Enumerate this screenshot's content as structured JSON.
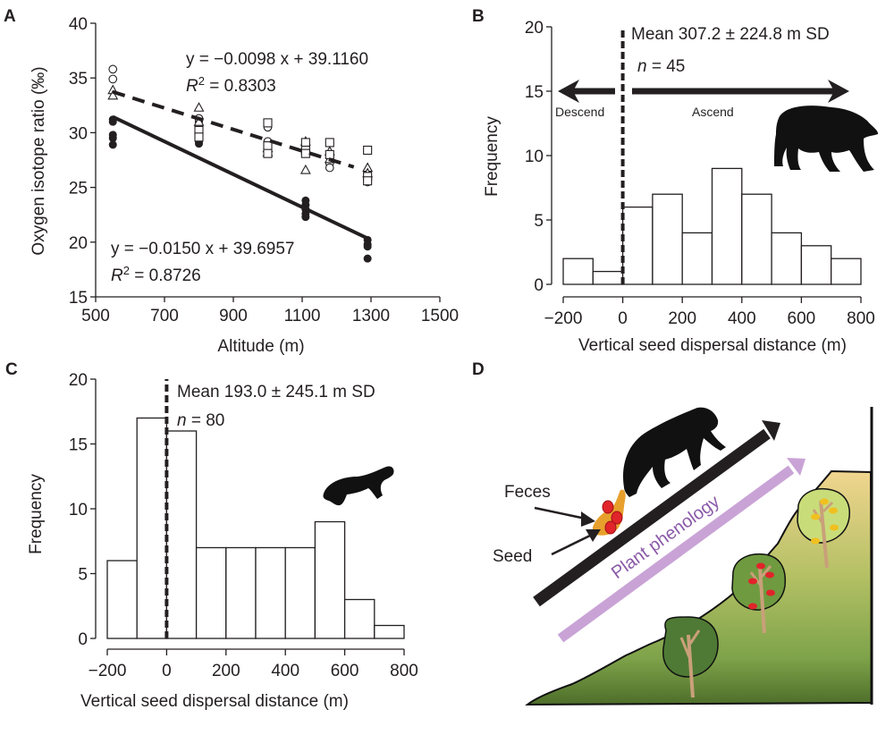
{
  "chart_data": [
    {
      "panel": "A",
      "type": "scatter",
      "xlabel": "Altitude (m)",
      "ylabel": "Oxygen isotope ratio (‰)",
      "xlim": [
        500,
        1500
      ],
      "ylim": [
        15,
        40
      ],
      "xticks": [
        500,
        700,
        900,
        1100,
        1300,
        1500
      ],
      "yticks": [
        15,
        20,
        25,
        30,
        35,
        40
      ],
      "grid": false,
      "series": [
        {
          "name": "filled circles",
          "marker": "filled-circle",
          "points": [
            [
              550,
              31.2
            ],
            [
              550,
              31.0
            ],
            [
              550,
              29.8
            ],
            [
              550,
              29.5
            ],
            [
              550,
              28.9
            ],
            [
              800,
              31.0
            ],
            [
              800,
              30.5
            ],
            [
              800,
              30.0
            ],
            [
              800,
              29.5
            ],
            [
              800,
              29.2
            ],
            [
              800,
              29.0
            ],
            [
              1110,
              23.8
            ],
            [
              1110,
              23.4
            ],
            [
              1110,
              23.0
            ],
            [
              1110,
              22.6
            ],
            [
              1110,
              22.3
            ],
            [
              1290,
              20.2
            ],
            [
              1290,
              19.8
            ],
            [
              1290,
              19.6
            ],
            [
              1290,
              18.5
            ]
          ]
        },
        {
          "name": "open circles",
          "marker": "open-circle",
          "points": [
            [
              550,
              35.8
            ],
            [
              550,
              34.9
            ],
            [
              800,
              31.3
            ],
            [
              800,
              30.5
            ],
            [
              1000,
              30.5
            ],
            [
              1000,
              29.2
            ],
            [
              1110,
              28.6
            ],
            [
              1180,
              27.8
            ],
            [
              1180,
              27.2
            ],
            [
              1180,
              26.8
            ],
            [
              1290,
              26.3
            ],
            [
              1290,
              25.5
            ]
          ]
        },
        {
          "name": "open triangles",
          "marker": "open-triangle",
          "points": [
            [
              550,
              33.9
            ],
            [
              550,
              33.4
            ],
            [
              800,
              32.3
            ],
            [
              800,
              31.0
            ],
            [
              1000,
              28.6
            ],
            [
              1000,
              28.2
            ],
            [
              1110,
              29.2
            ],
            [
              1110,
              26.6
            ],
            [
              1180,
              28.3
            ],
            [
              1180,
              27.6
            ],
            [
              1290,
              26.8
            ],
            [
              1290,
              26.3
            ]
          ]
        },
        {
          "name": "open squares",
          "marker": "open-square",
          "points": [
            [
              800,
              30.2
            ],
            [
              800,
              29.6
            ],
            [
              1000,
              30.9
            ],
            [
              1000,
              28.8
            ],
            [
              1000,
              28.1
            ],
            [
              1110,
              29.1
            ],
            [
              1110,
              28.4
            ],
            [
              1110,
              28.1
            ],
            [
              1180,
              29.1
            ],
            [
              1180,
              28.0
            ],
            [
              1290,
              28.4
            ],
            [
              1290,
              26.0
            ],
            [
              1290,
              25.6
            ]
          ]
        }
      ],
      "fits": [
        {
          "style": "dashed",
          "slope": -0.0098,
          "intercept": 39.116,
          "x_range": [
            550,
            1250
          ],
          "equation": "y = −0.0098 x + 39.1160",
          "r2_label": "R",
          "r2_sup": "2",
          "r2_value": " = 0.8303"
        },
        {
          "style": "solid",
          "slope": -0.015,
          "intercept": 39.6957,
          "x_range": [
            550,
            1290
          ],
          "equation": "y = −0.0150 x + 39.6957",
          "r2_label": "R",
          "r2_sup": "2",
          "r2_value": " = 0.8726"
        }
      ]
    },
    {
      "panel": "B",
      "type": "bar",
      "subtype": "histogram",
      "xlabel": "Vertical seed dispersal distance (m)",
      "ylabel": "Frequency",
      "bin_edges": [
        -200,
        -100,
        0,
        100,
        200,
        300,
        400,
        500,
        600,
        700,
        800
      ],
      "values": [
        2,
        1,
        6,
        7,
        4,
        9,
        7,
        4,
        3,
        2
      ],
      "xlim": [
        -200,
        800
      ],
      "ylim": [
        0,
        20
      ],
      "xticks": [
        -200,
        0,
        200,
        400,
        600,
        800
      ],
      "xtick_labels": [
        "−200",
        "0",
        "200",
        "400",
        "600",
        "800"
      ],
      "yticks": [
        0,
        5,
        10,
        15,
        20
      ],
      "mean_line_x": 0,
      "annotation_mean": "Mean 307.2 ± 224.8 m SD",
      "annotation_n_label": "n",
      "annotation_n_value": " = 45",
      "arrow_left_label": "Descend",
      "arrow_right_label": "Ascend",
      "arrow_level": 15,
      "icon": "black-bear-silhouette"
    },
    {
      "panel": "C",
      "type": "bar",
      "subtype": "histogram",
      "xlabel": "Vertical seed dispersal distance (m)",
      "ylabel": "Frequency",
      "bin_edges": [
        -200,
        -100,
        0,
        100,
        200,
        300,
        400,
        500,
        600,
        700,
        800
      ],
      "values": [
        6,
        17,
        16,
        7,
        7,
        7,
        7,
        9,
        3,
        1
      ],
      "xlim": [
        -200,
        800
      ],
      "ylim": [
        0,
        20
      ],
      "xticks": [
        -200,
        0,
        200,
        400,
        600,
        800
      ],
      "xtick_labels": [
        "−200",
        "0",
        "200",
        "400",
        "600",
        "800"
      ],
      "yticks": [
        0,
        5,
        10,
        15,
        20
      ],
      "mean_line_x": 0,
      "annotation_mean": "Mean 193.0 ± 245.1 m SD",
      "annotation_n_label": "n",
      "annotation_n_value": " = 80",
      "icon": "marten-silhouette"
    }
  ],
  "panels": {
    "A": {
      "label": "A"
    },
    "B": {
      "label": "B"
    },
    "C": {
      "label": "C"
    },
    "D": {
      "label": "D",
      "feces_label": "Feces",
      "seed_label": "Seed",
      "phenology_label": "Plant phenology",
      "colors": {
        "hill_top": "#f0d58f",
        "hill_mid": "#a8bb5a",
        "hill_bottom": "#4e7a2c",
        "phenology_arrow": "#c9a3d6",
        "phenology_text": "#8a5aa8",
        "feces": "#e8a02c",
        "seed": "#e0242a",
        "tree_dark": "#4f7a35",
        "tree_mid": "#7ea34a",
        "tree_light": "#c9dc7a",
        "fruit_red": "#e0242a",
        "fruit_yellow": "#f0c020",
        "trunk": "#c9a07a"
      }
    }
  }
}
